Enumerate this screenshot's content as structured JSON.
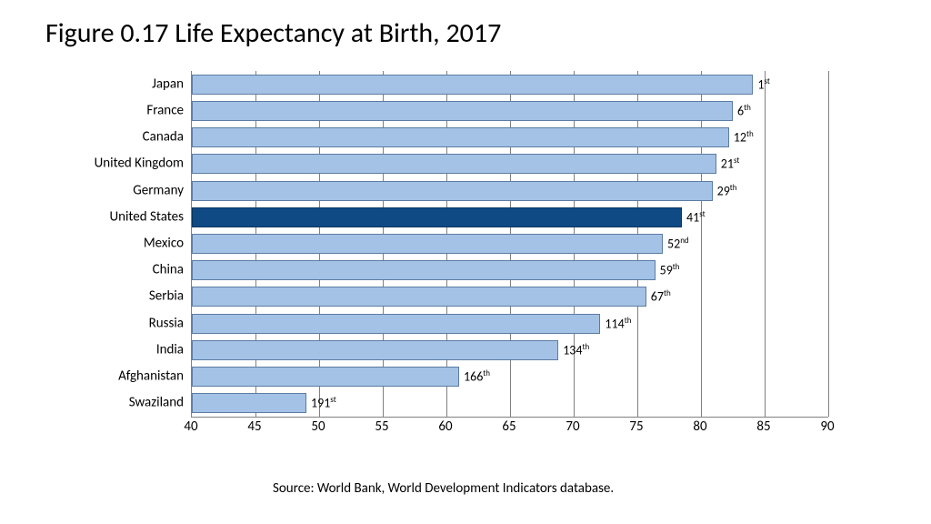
{
  "title": "Figure 0.17 Life Expectancy at Birth, 2017",
  "source": "Source: World Bank, World Development Indicators database.",
  "chart": {
    "type": "bar-horizontal",
    "xmin": 40,
    "xmax": 90,
    "xtick_step": 5,
    "xticks": [
      40,
      45,
      50,
      55,
      60,
      65,
      70,
      75,
      80,
      85,
      90
    ],
    "background_color": "#ffffff",
    "grid_color": "#808080",
    "bar_color": "#a4c2e5",
    "bar_border_color": "#5b7ca3",
    "highlight_color": "#0f4a84",
    "highlight_border_color": "#0b355f",
    "label_fontsize": 15,
    "rank_fontsize": 14,
    "bars": [
      {
        "label": "Japan",
        "value": 84.1,
        "rank_num": "1",
        "rank_suf": "st",
        "highlight": false
      },
      {
        "label": "France",
        "value": 82.5,
        "rank_num": "6",
        "rank_suf": "th",
        "highlight": false
      },
      {
        "label": "Canada",
        "value": 82.2,
        "rank_num": "12",
        "rank_suf": "th",
        "highlight": false
      },
      {
        "label": "United Kingdom",
        "value": 81.2,
        "rank_num": "21",
        "rank_suf": "st",
        "highlight": false
      },
      {
        "label": "Germany",
        "value": 80.9,
        "rank_num": "29",
        "rank_suf": "th",
        "highlight": false
      },
      {
        "label": "United States",
        "value": 78.5,
        "rank_num": "41",
        "rank_suf": "st",
        "highlight": true
      },
      {
        "label": "Mexico",
        "value": 77.0,
        "rank_num": "52",
        "rank_suf": "nd",
        "highlight": false
      },
      {
        "label": "China",
        "value": 76.4,
        "rank_num": "59",
        "rank_suf": "th",
        "highlight": false
      },
      {
        "label": "Serbia",
        "value": 75.7,
        "rank_num": "67",
        "rank_suf": "th",
        "highlight": false
      },
      {
        "label": "Russia",
        "value": 72.1,
        "rank_num": "114",
        "rank_suf": "th",
        "highlight": false
      },
      {
        "label": "India",
        "value": 68.8,
        "rank_num": "134",
        "rank_suf": "th",
        "highlight": false
      },
      {
        "label": "Afghanistan",
        "value": 61.0,
        "rank_num": "166",
        "rank_suf": "th",
        "highlight": false
      },
      {
        "label": "Swaziland",
        "value": 49.0,
        "rank_num": "191",
        "rank_suf": "st",
        "highlight": false
      }
    ]
  }
}
